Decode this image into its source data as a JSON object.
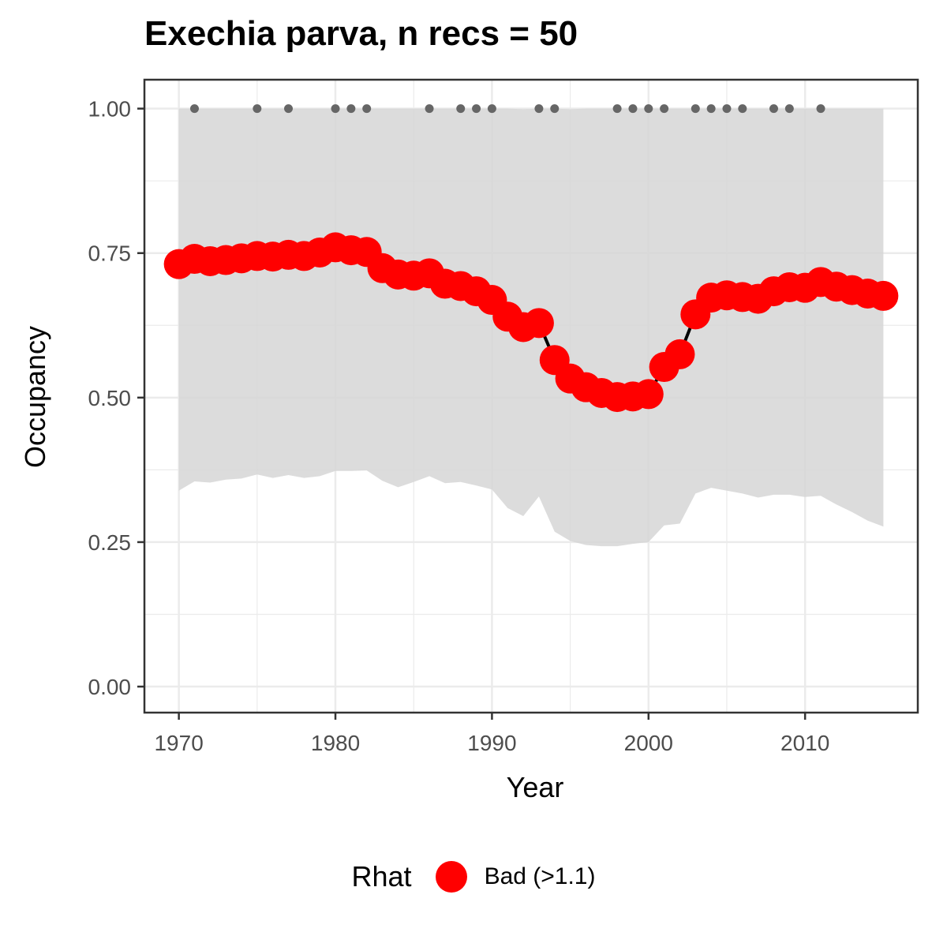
{
  "chart_data": {
    "type": "line",
    "title": "Exechia parva, n recs = 50",
    "xlabel": "Year",
    "ylabel": "Occupancy",
    "xlim": [
      1967.8,
      2017.2
    ],
    "ylim": [
      -0.045,
      1.05
    ],
    "x_ticks": [
      1970,
      1980,
      1990,
      2000,
      2010
    ],
    "y_ticks": [
      0.0,
      0.25,
      0.5,
      0.75,
      1.0
    ],
    "x_tick_labels": [
      "1970",
      "1980",
      "1990",
      "2000",
      "2010"
    ],
    "y_tick_labels": [
      "0.00",
      "0.25",
      "0.50",
      "0.75",
      "1.00"
    ],
    "grid": true,
    "legend": {
      "position": "bottom",
      "title": "Rhat",
      "entries": [
        {
          "label": "Bad (>1.1)",
          "color": "#ff0000"
        }
      ]
    },
    "years": [
      1970,
      1971,
      1972,
      1973,
      1974,
      1975,
      1976,
      1977,
      1978,
      1979,
      1980,
      1981,
      1982,
      1983,
      1984,
      1985,
      1986,
      1987,
      1988,
      1989,
      1990,
      1991,
      1992,
      1993,
      1994,
      1995,
      1996,
      1997,
      1998,
      1999,
      2000,
      2001,
      2002,
      2003,
      2004,
      2005,
      2006,
      2007,
      2008,
      2009,
      2010,
      2011,
      2012,
      2013,
      2014,
      2015
    ],
    "occupancy": [
      0.731,
      0.74,
      0.736,
      0.738,
      0.741,
      0.745,
      0.744,
      0.747,
      0.745,
      0.751,
      0.76,
      0.755,
      0.752,
      0.724,
      0.713,
      0.711,
      0.715,
      0.697,
      0.693,
      0.684,
      0.669,
      0.64,
      0.622,
      0.629,
      0.565,
      0.533,
      0.518,
      0.508,
      0.501,
      0.502,
      0.506,
      0.553,
      0.575,
      0.644,
      0.673,
      0.677,
      0.674,
      0.671,
      0.684,
      0.691,
      0.69,
      0.7,
      0.692,
      0.686,
      0.68,
      0.676
    ],
    "upper_ci": [
      1.0,
      1.0,
      1.0,
      1.0,
      1.0,
      1.0,
      1.0,
      1.0,
      1.0,
      1.0,
      1.0,
      1.0,
      1.0,
      1.0,
      1.0,
      1.0,
      1.0,
      1.0,
      1.0,
      1.0,
      1.0,
      1.0,
      0.999,
      1.0,
      1.0,
      0.999,
      1.0,
      1.0,
      1.0,
      1.0,
      1.0,
      1.0,
      1.0,
      1.0,
      1.0,
      1.0,
      1.0,
      1.0,
      1.0,
      1.0,
      1.0,
      1.0,
      1.0,
      1.0,
      1.0,
      1.0
    ],
    "lower_ci": [
      0.339,
      0.355,
      0.353,
      0.358,
      0.36,
      0.367,
      0.361,
      0.366,
      0.361,
      0.364,
      0.373,
      0.373,
      0.374,
      0.356,
      0.345,
      0.354,
      0.364,
      0.352,
      0.354,
      0.348,
      0.341,
      0.309,
      0.295,
      0.329,
      0.268,
      0.252,
      0.245,
      0.243,
      0.243,
      0.247,
      0.25,
      0.279,
      0.282,
      0.334,
      0.344,
      0.339,
      0.334,
      0.327,
      0.332,
      0.332,
      0.328,
      0.33,
      0.315,
      0.302,
      0.287,
      0.277
    ],
    "record_years": [
      1971,
      1975,
      1977,
      1980,
      1981,
      1982,
      1986,
      1988,
      1989,
      1990,
      1993,
      1994,
      1998,
      1999,
      2000,
      2001,
      2003,
      2004,
      2005,
      2006,
      2008,
      2009,
      2011
    ],
    "record_value": 1.0,
    "colors": {
      "points": "#ff0000",
      "line": "#000000",
      "ribbon": "#d6d6d6",
      "records": "#666666",
      "grid_major": "#ebebeb",
      "panel_border": "#333333"
    }
  }
}
